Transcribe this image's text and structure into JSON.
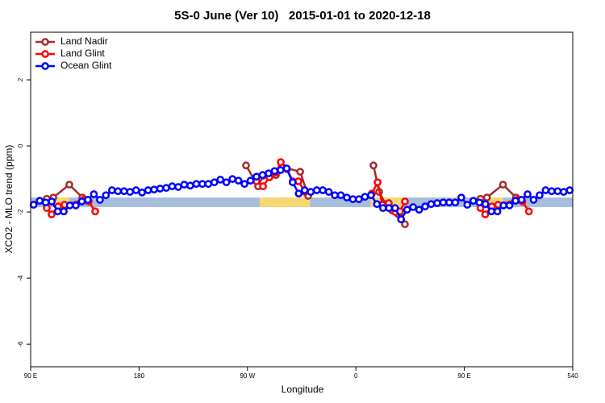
{
  "chart_data": {
    "type": "line",
    "title": "5S-0 June (Ver 10)   2015-01-01 to 2020-12-18",
    "x_label": "Longitude",
    "y_label": "XCO2 - MLO trend (ppm)",
    "xlim": [
      90,
      540
    ],
    "ylim": [
      -6.68,
      3.44
    ],
    "xticks": [
      {
        "value": 90,
        "label": "90 E"
      },
      180,
      {
        "value": 270,
        "label": "90 W"
      },
      {
        "value": 360,
        "label": "0"
      },
      {
        "value": 450,
        "label": "90 E"
      },
      540
    ],
    "yticks": [
      -6,
      -4,
      -2,
      0,
      2
    ],
    "legend": "top-left",
    "band_range": [
      -1.85,
      -1.56
    ],
    "band_color": "#a6bddb",
    "highlight_spans": [
      [
        108.8,
        122.1
      ],
      [
        280,
        322
      ],
      [
        372,
        400
      ],
      [
        468.8,
        482.1
      ]
    ],
    "highlight_color": "#f7d774",
    "series": [
      {
        "name": "Land Nadir",
        "color": "#a52a2a",
        "x": [
          103.4,
          108.8,
          122.1,
          132.9,
          null,
          268.8,
          278.8,
          282.9,
          288.2,
          293.6,
          298.9,
          313.7,
          320.4,
          null,
          374.6,
          379.3,
          384.6,
          390.0,
          395.4,
          400.7,
          null,
          463.4,
          468.8,
          482.1,
          492.9
        ],
        "values": [
          -1.6,
          -1.56,
          -1.17,
          -1.56,
          null,
          -0.59,
          -1.22,
          -0.9,
          -0.85,
          -0.88,
          -0.63,
          -0.78,
          -1.51,
          null,
          -0.59,
          -1.39,
          -1.76,
          -1.95,
          -2.07,
          -2.37,
          null,
          -1.6,
          -1.56,
          -1.17,
          -1.56
        ]
      },
      {
        "name": "Land Glint",
        "color": "#ff0000",
        "x": [
          103.4,
          107.4,
          112.8,
          118.1,
          134.2,
          138.2,
          143.6,
          null,
          277.5,
          282.9,
          288.2,
          293.6,
          297.6,
          302.9,
          307.6,
          312.3,
          317.7,
          null,
          373.3,
          378.0,
          382.0,
          387.3,
          392.7,
          396.7,
          400.7,
          null,
          463.4,
          467.4,
          472.8,
          478.1,
          494.2,
          498.2,
          503.6
        ],
        "values": [
          -1.88,
          -2.07,
          -1.83,
          -1.78,
          -1.63,
          -1.68,
          -1.98,
          null,
          -1.07,
          -1.22,
          -0.95,
          -0.8,
          -0.49,
          -0.7,
          -1.07,
          -1.07,
          -1.39,
          null,
          -1.44,
          -1.1,
          -1.78,
          -1.73,
          -2.0,
          -1.98,
          -1.68,
          null,
          -1.88,
          -2.07,
          -1.83,
          -1.78,
          -1.63,
          -1.68,
          -1.98
        ]
      },
      {
        "name": "Ocean Glint",
        "color": "#0000ff",
        "x": [
          92.5,
          97.5,
          102.5,
          107.5,
          112.5,
          117.5,
          122.5,
          127.5,
          132.5,
          137.5,
          142.5,
          147.5,
          152.5,
          157.5,
          162.5,
          167.5,
          172.5,
          177.5,
          182.5,
          187.5,
          192.5,
          197.5,
          202.5,
          207.5,
          212.5,
          217.5,
          222.5,
          227.5,
          232.5,
          237.5,
          242.5,
          247.5,
          252.5,
          257.5,
          262.5,
          267.5,
          272.5,
          277.5,
          282.5,
          287.5,
          292.5,
          297.5,
          302.5,
          307.5,
          312.5,
          317.5,
          322.5,
          327.5,
          332.5,
          337.5,
          342.5,
          347.5,
          352.5,
          357.5,
          362.5,
          367.5,
          372.5,
          377.5,
          382.5,
          387.5,
          392.5,
          397.5,
          402.5,
          407.5,
          412.5,
          417.5,
          422.5,
          427.5,
          432.5,
          437.5,
          442.5,
          447.5,
          452.5,
          457.5,
          462.5,
          467.5,
          472.5,
          477.5,
          482.5,
          487.5,
          492.5,
          497.5,
          502.5,
          507.5,
          512.5,
          517.5,
          522.5,
          527.5,
          532.5,
          537.5
        ],
        "values": [
          -1.78,
          -1.66,
          -1.71,
          -1.68,
          -1.98,
          -1.98,
          -1.8,
          -1.8,
          -1.68,
          -1.63,
          -1.46,
          -1.63,
          -1.49,
          -1.34,
          -1.37,
          -1.37,
          -1.39,
          -1.34,
          -1.41,
          -1.34,
          -1.32,
          -1.29,
          -1.27,
          -1.22,
          -1.24,
          -1.17,
          -1.2,
          -1.15,
          -1.15,
          -1.15,
          -1.1,
          -1.02,
          -1.1,
          -1.0,
          -1.05,
          -1.15,
          -1.05,
          -0.93,
          -0.88,
          -0.83,
          -0.76,
          -0.73,
          -0.68,
          -1.1,
          -1.44,
          -1.34,
          -1.39,
          -1.34,
          -1.34,
          -1.39,
          -1.49,
          -1.49,
          -1.56,
          -1.61,
          -1.61,
          -1.54,
          -1.49,
          -1.76,
          -1.88,
          -1.88,
          -1.88,
          -2.22,
          -1.93,
          -1.85,
          -1.93,
          -1.83,
          -1.76,
          -1.73,
          -1.71,
          -1.71,
          -1.71,
          -1.56,
          -1.78,
          -1.66,
          -1.71,
          -1.76,
          -1.98,
          -1.98,
          -1.8,
          -1.8,
          -1.66,
          -1.63,
          -1.46,
          -1.63,
          -1.49,
          -1.34,
          -1.37,
          -1.37,
          -1.39,
          -1.34
        ]
      }
    ]
  }
}
